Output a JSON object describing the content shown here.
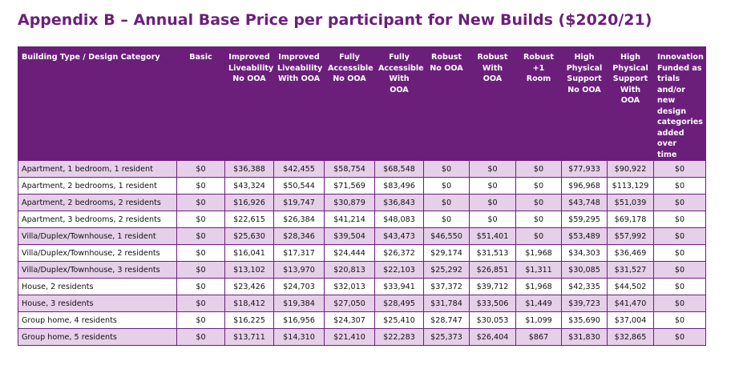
{
  "header": {
    "title": "Appendix B – Annual Base Price per participant for New Builds ($2020/21)"
  },
  "table": {
    "columns": [
      "Building Type / Design Category",
      "Basic",
      "Improved\nLiveability\nNo OOA",
      "Improved\nLiveability\nWith OOA",
      "Fully\nAccessible\nNo OOA",
      "Fully\nAccessible\nWith OOA",
      "Robust\nNo OOA",
      "Robust\nWith\nOOA",
      "Robust\n+1 Room",
      "High\nPhysical\nSupport\nNo OOA",
      "High\nPhysical\nSupport\nWith\nOOA",
      "Innovation\nFunded as\ntrials\nand/or\nnew design\ncategories\nadded over\ntime"
    ],
    "rows": [
      [
        "Apartment, 1 bedroom, 1 resident",
        "$0",
        "$36,388",
        "$42,455",
        "$58,754",
        "$68,548",
        "$0",
        "$0",
        "$0",
        "$77,933",
        "$90,922",
        "$0"
      ],
      [
        "Apartment, 2 bedrooms, 1 resident",
        "$0",
        "$43,324",
        "$50,544",
        "$71,569",
        "$83,496",
        "$0",
        "$0",
        "$0",
        "$96,968",
        "$113,129",
        "$0"
      ],
      [
        "Apartment, 2 bedrooms, 2 residents",
        "$0",
        "$16,926",
        "$19,747",
        "$30,879",
        "$36,843",
        "$0",
        "$0",
        "$0",
        "$43,748",
        "$51,039",
        "$0"
      ],
      [
        "Apartment, 3 bedrooms, 2 residents",
        "$0",
        "$22,615",
        "$26,384",
        "$41,214",
        "$48,083",
        "$0",
        "$0",
        "$0",
        "$59,295",
        "$69,178",
        "$0"
      ],
      [
        "Villa/Duplex/Townhouse, 1 resident",
        "$0",
        "$25,630",
        "$28,346",
        "$39,504",
        "$43,473",
        "$46,550",
        "$51,401",
        "$0",
        "$53,489",
        "$57,992",
        "$0"
      ],
      [
        "Villa/Duplex/Townhouse, 2 residents",
        "$0",
        "$16,041",
        "$17,317",
        "$24,444",
        "$26,372",
        "$29,174",
        "$31,513",
        "$1,968",
        "$34,303",
        "$36,469",
        "$0"
      ],
      [
        "Villa/Duplex/Townhouse, 3 residents",
        "$0",
        "$13,102",
        "$13,970",
        "$20,813",
        "$22,103",
        "$25,292",
        "$26,851",
        "$1,311",
        "$30,085",
        "$31,527",
        "$0"
      ],
      [
        "House, 2 residents",
        "$0",
        "$23,426",
        "$24,703",
        "$32,013",
        "$33,941",
        "$37,372",
        "$39,712",
        "$1,968",
        "$42,335",
        "$44,502",
        "$0"
      ],
      [
        "House, 3 residents",
        "$0",
        "$18,412",
        "$19,384",
        "$27,050",
        "$28,495",
        "$31,784",
        "$33,506",
        "$1,449",
        "$39,723",
        "$41,470",
        "$0"
      ],
      [
        "Group home, 4 residents",
        "$0",
        "$16,225",
        "$16,956",
        "$24,307",
        "$25,410",
        "$28,747",
        "$30,053",
        "$1,099",
        "$35,690",
        "$37,004",
        "$0"
      ],
      [
        "Group home, 5 residents",
        "$0",
        "$13,711",
        "$14,310",
        "$21,410",
        "$22,283",
        "$25,373",
        "$26,404",
        "$867",
        "$31,830",
        "$32,865",
        "$0"
      ]
    ]
  }
}
